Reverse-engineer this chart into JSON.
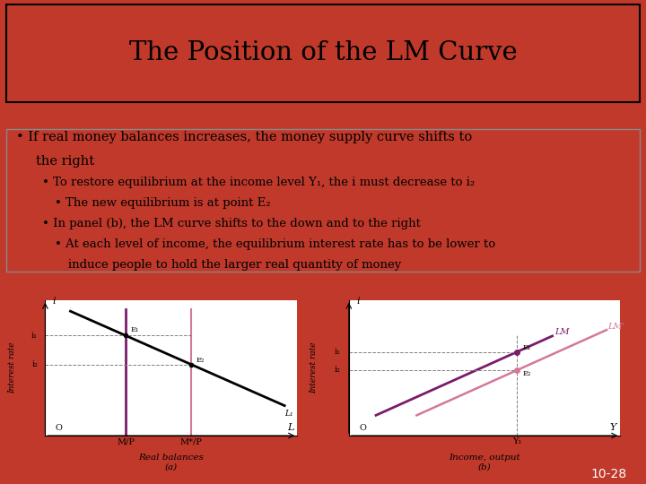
{
  "title": "The Position of the LM Curve",
  "background_color": "#c0392b",
  "dark_bar_color": "#1a0a00",
  "slide_bg": "#ffffff",
  "graph_bg": "#e8ddd0",
  "bullet_lines": [
    [
      0.025,
      "•  If real money balances increases, the money supply curve shifts to the right"
    ],
    [
      0.06,
      "•  To restore equilibrium at the income level Y₁, the i must decrease to i₂"
    ],
    [
      0.09,
      "•  The new equilibrium is at point E₂"
    ],
    [
      0.06,
      "•  In panel (b), the LM curve shifts to the down and to the right"
    ],
    [
      0.09,
      "•  At each level of income, the equilibrium interest rate has to be lower to"
    ],
    [
      0.105,
      "induce people to hold the larger real quantity of money"
    ]
  ],
  "footer_text": "10-28",
  "panel_a_xlabel": "Real balances",
  "panel_a_xlabel2": "(a)",
  "panel_b_xlabel": "Income, output",
  "panel_b_xlabel2": "(b)",
  "panel_a_ylabel": "Interest rate",
  "panel_b_ylabel": "Interest rate",
  "lm_color": "#7B1B6B",
  "lm2_color": "#D4789A",
  "ms_color": "#7B1B6B",
  "ms2_color": "#D4789A"
}
